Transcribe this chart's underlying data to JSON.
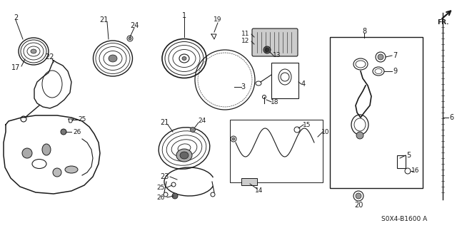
{
  "diagram_code": "S0X4-B1600 A",
  "background_color": "#ffffff",
  "line_color": "#1a1a1a",
  "fig_width": 6.4,
  "fig_height": 3.2,
  "dpi": 100,
  "fr_label": "FR."
}
